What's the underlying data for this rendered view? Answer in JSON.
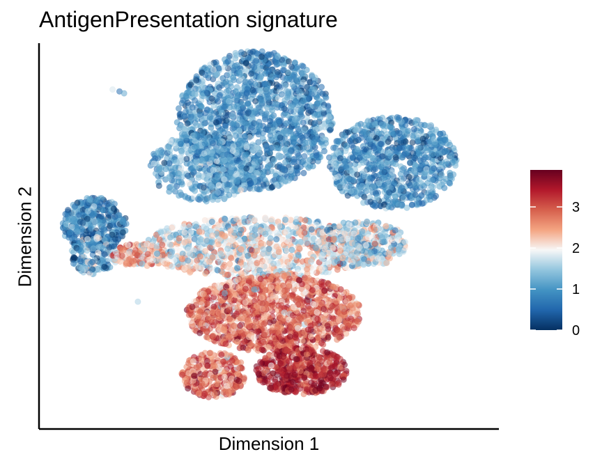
{
  "chart_data": {
    "type": "scatter",
    "title": "AntigenPresentation signature",
    "xlabel": "Dimension 1",
    "ylabel": "Dimension 2",
    "x_ticks_shown": false,
    "y_ticks_shown": false,
    "grid": false,
    "color_scale": {
      "name": "RdBu (reversed)",
      "min": 0,
      "max": 3.9,
      "ticks": [
        0,
        1,
        2,
        3
      ],
      "tick_labels": [
        "0",
        "1",
        "2",
        "3"
      ],
      "colors": [
        "#053061",
        "#2166ac",
        "#4393c3",
        "#92c5de",
        "#f7f7f7",
        "#f4a582",
        "#d6604d",
        "#b2182b",
        "#67001f"
      ],
      "legend_position": "right"
    },
    "clusters": [
      {
        "region": "upper-center",
        "center": [
          0.47,
          0.79
        ],
        "approx_value": 0.9
      },
      {
        "region": "upper-right",
        "center": [
          0.78,
          0.69
        ],
        "approx_value": 0.9
      },
      {
        "region": "left",
        "center": [
          0.11,
          0.5
        ],
        "approx_value": 0.7
      },
      {
        "region": "lower-center",
        "center": [
          0.52,
          0.27
        ],
        "approx_value": 2.9
      }
    ]
  }
}
